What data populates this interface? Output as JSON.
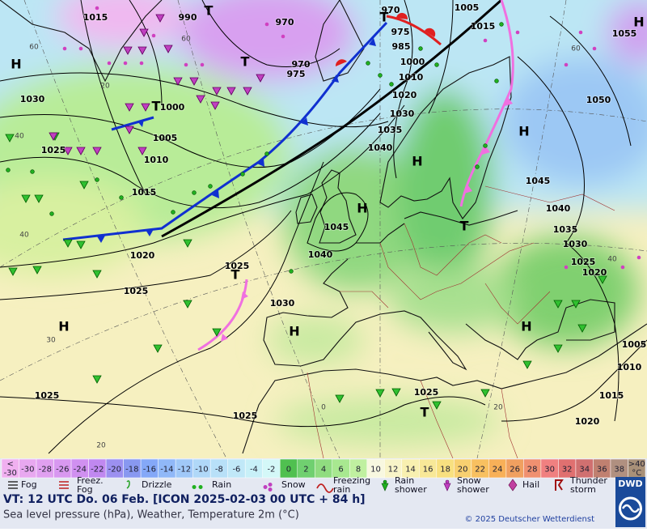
{
  "map": {
    "pressure_labels": [
      1015,
      990,
      970,
      970,
      1005,
      1015,
      1055,
      975,
      985,
      1000,
      970,
      975,
      1010,
      1020,
      1000,
      1030,
      1050,
      1030,
      1035,
      1005,
      1040,
      1025,
      1010,
      1045,
      1015,
      1040,
      1045,
      1035,
      1030,
      1020,
      1040,
      1025,
      1020,
      1025,
      1025,
      1030,
      1005,
      1010,
      1015,
      1025,
      1025,
      1025,
      1020
    ],
    "temperature_labels": [
      60,
      60,
      40,
      20,
      30,
      20,
      40,
      0,
      20,
      60,
      40
    ],
    "centers": [
      "H",
      "T",
      "T",
      "T",
      "H",
      "H",
      "H",
      "T",
      "T",
      "H",
      "H",
      "H",
      "T",
      "T",
      "H"
    ]
  },
  "colorbar": {
    "low_label": [
      "<",
      "-30"
    ],
    "low_color": "#f0b0f0",
    "values": [
      -30,
      -28,
      -26,
      -24,
      -22,
      -20,
      -18,
      -16,
      -14,
      -12,
      -10,
      -8,
      -6,
      -4,
      -2,
      0,
      2,
      4,
      6,
      8,
      10,
      12,
      14,
      16,
      18,
      20,
      22,
      24,
      26,
      28,
      30,
      32,
      34,
      36,
      38
    ],
    "colors": [
      "#e8a8f0",
      "#e0a0f0",
      "#d898f0",
      "#d090f0",
      "#c088f0",
      "#9c90f0",
      "#8898f0",
      "#84a8f8",
      "#90b8f8",
      "#a0c8f8",
      "#b0d8f8",
      "#b8e0f8",
      "#c0e8f8",
      "#c8f0f8",
      "#d4f8f8",
      "#50c050",
      "#70d070",
      "#90dc80",
      "#a8e890",
      "#c0f0a0",
      "#f8f8e0",
      "#f8f4c8",
      "#f8f0b0",
      "#f8e898",
      "#f8e080",
      "#f8d070",
      "#f8c060",
      "#f8b058",
      "#f0a060",
      "#f09070",
      "#f08080",
      "#e07070",
      "#d07070",
      "#c08070",
      "#b09080"
    ],
    "high_label": [
      ">40",
      "°C"
    ],
    "high_color": "#a89078"
  },
  "legend": [
    [
      "Fog"
    ],
    [
      "Freez.",
      "Fog"
    ],
    [
      "Drizzle"
    ],
    [
      "Rain"
    ],
    [
      "Snow"
    ],
    [
      "Freezing",
      "rain"
    ],
    [
      "Rain",
      "shower"
    ],
    [
      "Snow",
      "shower"
    ],
    [
      "Hail"
    ],
    [
      "Thunder",
      "storm"
    ]
  ],
  "footer": {
    "valid_time": "VT: 12 UTC Do.  06 Feb. [ICON 2025-02-03  00 UTC + 84 h]",
    "description": "Sea level pressure (hPa), Weather, Temperature 2m (°C)",
    "copyright": "© 2025 Deutscher Wetterdienst",
    "logo": "DWD"
  }
}
